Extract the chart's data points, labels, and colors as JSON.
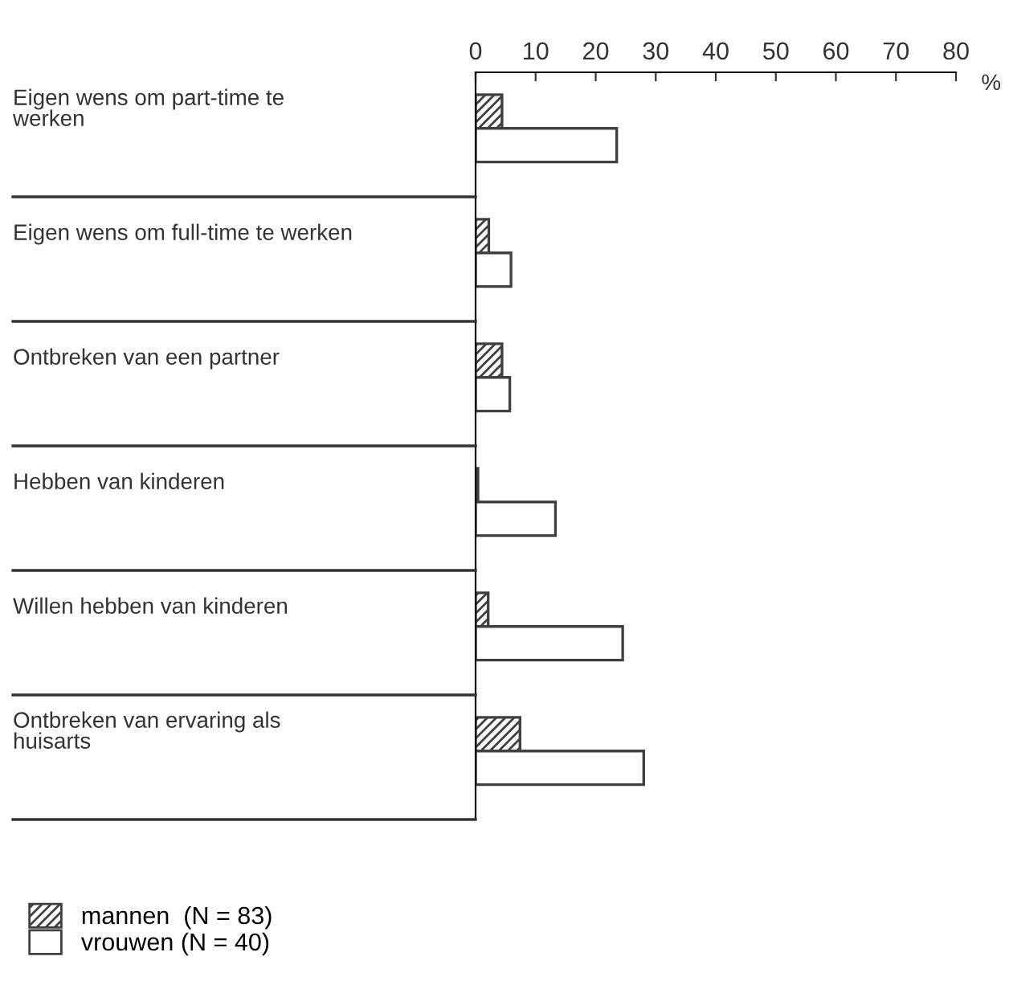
{
  "chart_data": {
    "type": "bar",
    "orientation": "horizontal",
    "xlabel": "%",
    "categories": [
      "Eigen wens om part-time te\nwerken",
      "Eigen wens om full-time te werken",
      "Ontbreken van een partner",
      "Hebben van kinderen",
      "Willen hebben van kinderen",
      "Ontbreken van ervaring als\nhuisarts"
    ],
    "series": [
      {
        "name": "mannen  (N = 83)",
        "color": "#404040",
        "values": [
          4.4,
          2.2,
          4.4,
          0.4,
          2.1,
          7.4
        ]
      },
      {
        "name": "vrouwen (N = 40)",
        "color": "#404040",
        "values": [
          23.5,
          5.9,
          5.7,
          13.3,
          24.5,
          28
        ]
      }
    ],
    "xlim": [
      0,
      80
    ],
    "xticks": [
      0,
      10,
      20,
      30,
      40,
      50,
      60,
      70,
      80
    ],
    "grid": false,
    "legend": "bottom left"
  }
}
